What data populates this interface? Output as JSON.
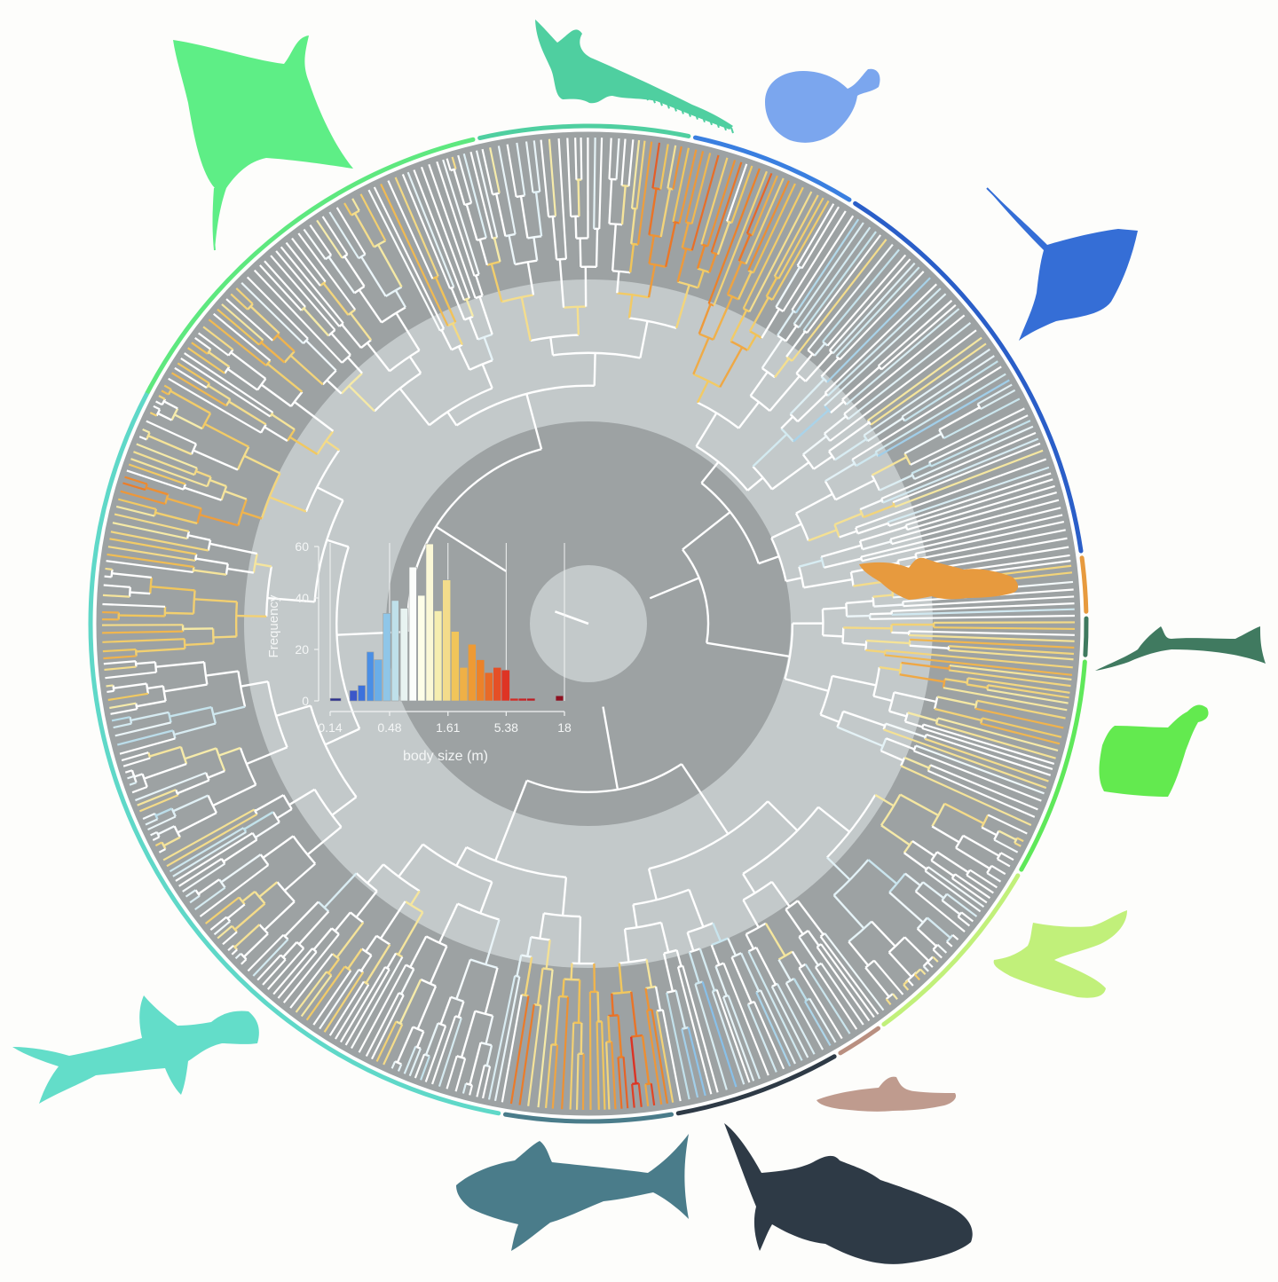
{
  "chart_data": {
    "type": "bar",
    "chart_kind": "circular phylogeny with inset histogram",
    "histogram": {
      "type": "bar",
      "x_scale": "log",
      "xlabel": "body size (m)",
      "ylabel": "Frequency",
      "xticks": [
        "0.14",
        "0.48",
        "1.61",
        "5.38",
        "18"
      ],
      "xtick_values": [
        0.14,
        0.48,
        1.61,
        5.38,
        18
      ],
      "yticks": [
        "0",
        "20",
        "40",
        "60"
      ],
      "ytick_values": [
        0,
        20,
        40,
        60
      ],
      "ylim": [
        0,
        60
      ],
      "xlim": [
        0.14,
        18
      ],
      "vertical_reference_lines": [
        0.14,
        0.48,
        1.61,
        5.38,
        18
      ],
      "bins": [
        {
          "x0": 0.14,
          "x1": 0.175,
          "value": 1,
          "color": "#2b2f8f"
        },
        {
          "x0": 0.21,
          "x1": 0.245,
          "value": 4,
          "color": "#3b57c9"
        },
        {
          "x0": 0.25,
          "x1": 0.29,
          "value": 6,
          "color": "#3d72dc"
        },
        {
          "x0": 0.3,
          "x1": 0.345,
          "value": 19,
          "color": "#4a8fe6"
        },
        {
          "x0": 0.35,
          "x1": 0.41,
          "value": 16,
          "color": "#6aaee8"
        },
        {
          "x0": 0.42,
          "x1": 0.49,
          "value": 34,
          "color": "#8fc6e8"
        },
        {
          "x0": 0.5,
          "x1": 0.58,
          "value": 39,
          "color": "#bfe0ea"
        },
        {
          "x0": 0.6,
          "x1": 0.7,
          "value": 36,
          "color": "#e8f3f1"
        },
        {
          "x0": 0.72,
          "x1": 0.84,
          "value": 52,
          "color": "#fbfdfb"
        },
        {
          "x0": 0.86,
          "x1": 1.0,
          "value": 41,
          "color": "#fefee8"
        },
        {
          "x0": 1.02,
          "x1": 1.19,
          "value": 61,
          "color": "#fbf8d6"
        },
        {
          "x0": 1.21,
          "x1": 1.42,
          "value": 35,
          "color": "#f6eeb0"
        },
        {
          "x0": 1.44,
          "x1": 1.7,
          "value": 47,
          "color": "#f3dc8b"
        },
        {
          "x0": 1.72,
          "x1": 2.03,
          "value": 27,
          "color": "#f1c55a"
        },
        {
          "x0": 2.05,
          "x1": 2.42,
          "value": 13,
          "color": "#efb046"
        },
        {
          "x0": 2.44,
          "x1": 2.88,
          "value": 22,
          "color": "#ee9a34"
        },
        {
          "x0": 2.9,
          "x1": 3.43,
          "value": 16,
          "color": "#ec8229"
        },
        {
          "x0": 3.45,
          "x1": 4.09,
          "value": 11,
          "color": "#e86a27"
        },
        {
          "x0": 4.11,
          "x1": 4.86,
          "value": 13,
          "color": "#e54f26"
        },
        {
          "x0": 4.88,
          "x1": 5.8,
          "value": 12,
          "color": "#de3424"
        },
        {
          "x0": 5.82,
          "x1": 6.92,
          "value": 1,
          "color": "#d42a24"
        },
        {
          "x0": 6.94,
          "x1": 8.24,
          "value": 1,
          "color": "#c92224"
        },
        {
          "x0": 8.26,
          "x1": 9.8,
          "value": 1,
          "color": "#bd1c22"
        },
        {
          "x0": 15.0,
          "x1": 17.6,
          "value": 2,
          "color": "#8e1020"
        }
      ]
    },
    "color_scale": [
      "#2b2f8f",
      "#3d72dc",
      "#6aaee8",
      "#bfe0ea",
      "#ffffff",
      "#f6eeb0",
      "#f1c55a",
      "#ec8229",
      "#de3424",
      "#8e1020"
    ],
    "tree_background": {
      "ring_colors": [
        "#c5cbcb",
        "#9ca1a2",
        "#c5cbcb",
        "#9ca1a2"
      ],
      "ring_radii_fraction": [
        0.14,
        0.45,
        0.72,
        1.0
      ]
    },
    "clade_arc_colors": [
      "#5ee87f",
      "#4fcfa0",
      "#3a7fe0",
      "#2a5ec8",
      "#e79a3e",
      "#3f7a5f",
      "#5fe85a",
      "#c1f07a",
      "#b98f80",
      "#2e3a46",
      "#4a7c8a",
      "#5fd8c8"
    ],
    "silhouette_colors": {
      "manta-ray": "#5eee86",
      "sawfish": "#4fcfa0",
      "skate": "#7ba6ee",
      "stingray": "#356ed6",
      "shark-orange": "#e79a3e",
      "sawshark": "#407a60",
      "angel-shark": "#63ea4f",
      "frilled-shark": "#c1f07a",
      "catshark": "#bf9b8e",
      "whale-shark": "#2e3a46",
      "white-shark": "#4a7c8a",
      "hammerhead": "#63ddc9"
    }
  }
}
